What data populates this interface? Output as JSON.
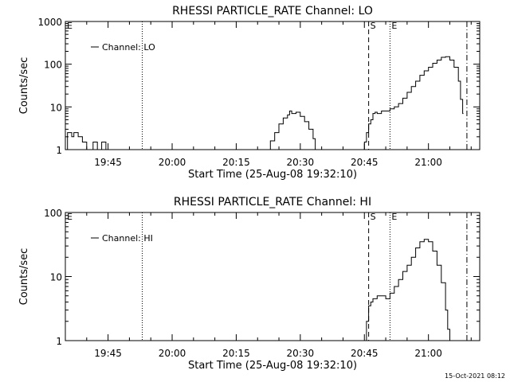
{
  "timestamp": "15-Oct-2021 08:12",
  "chart_data": [
    {
      "type": "line",
      "title": "RHESSI PARTICLE_RATE Channel: LO",
      "xlabel": "Start Time (25-Aug-08 19:32:10)",
      "ylabel": "Counts/sec",
      "y_scale": "log",
      "ylim": [
        1,
        1000
      ],
      "xlim": [
        "19:35",
        "21:12"
      ],
      "x_ticks": [
        "19:45",
        "20:00",
        "20:15",
        "20:30",
        "20:45",
        "21:00"
      ],
      "y_ticks": [
        "1",
        "10",
        "100",
        "1000"
      ],
      "legend": {
        "entry": "Channel: LO",
        "placement": "top-left"
      },
      "markers": [
        {
          "label": "E",
          "time": "19:35",
          "style": "label-only"
        },
        {
          "time": "19:53",
          "style": "dotted"
        },
        {
          "label": "S",
          "time": "20:46",
          "style": "dashed"
        },
        {
          "label": "E",
          "time": "20:51",
          "style": "dotted"
        },
        {
          "time": "21:09",
          "style": "dash-dot"
        }
      ],
      "series": [
        {
          "name": "Channel: LO",
          "segments": [
            {
              "x": [
                "19:35",
                "19:35.5",
                "19:36",
                "19:36.5",
                "19:37",
                "19:37.5",
                "19:38",
                "19:38.5",
                "19:39",
                "19:39.5",
                "19:40",
                "19:40.5",
                "19:41",
                "19:41.5",
                "19:42",
                "19:42.5",
                "19:43",
                "19:43.5",
                "19:44",
                "19:44.5"
              ],
              "y": [
                1,
                2.5,
                2.5,
                2,
                2.5,
                2.5,
                2,
                2,
                1.5,
                1.5,
                1,
                1,
                1,
                1.5,
                1.5,
                1,
                1,
                1.5,
                1.5,
                1
              ]
            },
            {
              "x": [
                "20:22",
                "20:23",
                "20:24",
                "20:25",
                "20:26",
                "20:27",
                "20:27.5",
                "20:28",
                "20:29",
                "20:30",
                "20:31",
                "20:32",
                "20:33",
                "20:33.5"
              ],
              "y": [
                1,
                1.6,
                2.5,
                4,
                5.5,
                6.5,
                8,
                7,
                7.5,
                6,
                4.5,
                3,
                1.8,
                1
              ]
            },
            {
              "x": [
                "20:44.5",
                "20:45",
                "20:45.5",
                "20:46",
                "20:46.5",
                "20:47",
                "20:47.5",
                "20:48",
                "20:49",
                "20:50",
                "20:51",
                "20:52",
                "20:53",
                "20:54",
                "20:55",
                "20:56",
                "20:57",
                "20:58",
                "20:59",
                "21:00",
                "21:01",
                "21:02",
                "21:03",
                "21:04",
                "21:05",
                "21:06",
                "21:07",
                "21:07.5",
                "21:08"
              ],
              "y": [
                1,
                1.5,
                2.5,
                4,
                5,
                7,
                7.5,
                7,
                8,
                8,
                9,
                10,
                12,
                16,
                22,
                30,
                40,
                55,
                70,
                85,
                105,
                125,
                145,
                150,
                125,
                85,
                40,
                15,
                7
              ]
            }
          ]
        }
      ]
    },
    {
      "type": "line",
      "title": "RHESSI PARTICLE_RATE Channel: HI",
      "xlabel": "Start Time (25-Aug-08 19:32:10)",
      "ylabel": "Counts/sec",
      "y_scale": "log",
      "ylim": [
        1,
        100
      ],
      "xlim": [
        "19:35",
        "21:12"
      ],
      "x_ticks": [
        "19:45",
        "20:00",
        "20:15",
        "20:30",
        "20:45",
        "21:00"
      ],
      "y_ticks": [
        "1",
        "10",
        "100"
      ],
      "legend": {
        "entry": "Channel: HI",
        "placement": "top-left"
      },
      "markers": [
        {
          "label": "E",
          "time": "19:35",
          "style": "label-only"
        },
        {
          "time": "19:53",
          "style": "dotted"
        },
        {
          "label": "S",
          "time": "20:46",
          "style": "dashed"
        },
        {
          "label": "E",
          "time": "20:51",
          "style": "dotted"
        },
        {
          "time": "21:09",
          "style": "dash-dot"
        }
      ],
      "series": [
        {
          "name": "Channel: HI",
          "segments": [
            {
              "x": [
                "20:45",
                "20:45.5",
                "20:46",
                "20:46.5",
                "20:47",
                "20:47.5",
                "20:48",
                "20:49",
                "20:50",
                "20:51",
                "20:52",
                "20:53",
                "20:54",
                "20:55",
                "20:56",
                "20:57",
                "20:58",
                "20:59",
                "21:00",
                "21:01",
                "21:02",
                "21:03",
                "21:04",
                "21:04.5",
                "21:05"
              ],
              "y": [
                1,
                2,
                3.5,
                4,
                4.5,
                4.5,
                5,
                5,
                4.5,
                5.5,
                7,
                9,
                12,
                15,
                20,
                28,
                35,
                38,
                35,
                25,
                15,
                8,
                3,
                1.5,
                1
              ]
            }
          ]
        }
      ]
    }
  ]
}
